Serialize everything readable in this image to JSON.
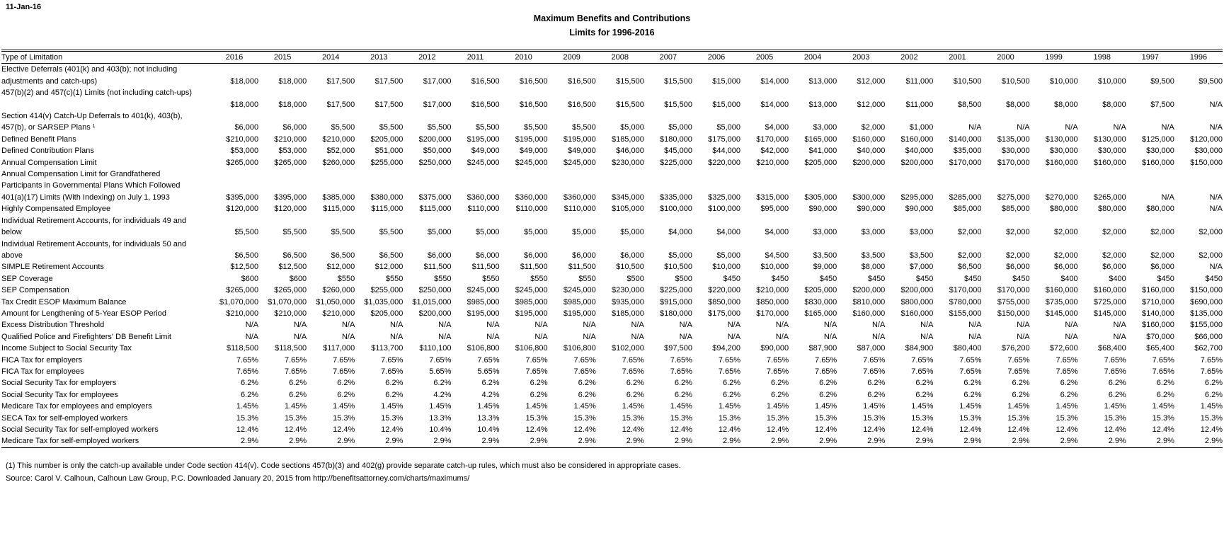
{
  "meta": {
    "date_label": "11-Jan-16"
  },
  "title": {
    "line1": "Maximum Benefits and Contributions",
    "line2": "Limits for 1996-2016"
  },
  "table": {
    "header": {
      "label": "Type of Limitation",
      "years": [
        "2016",
        "2015",
        "2014",
        "2013",
        "2012",
        "2011",
        "2010",
        "2009",
        "2008",
        "2007",
        "2006",
        "2005",
        "2004",
        "2003",
        "2002",
        "2001",
        "2000",
        "1999",
        "1998",
        "1997",
        "1996"
      ]
    },
    "rows": [
      {
        "label_lines": [
          "Elective Deferrals (401(k) and 403(b); not including",
          "adjustments and catch-ups)"
        ],
        "values": [
          "$18,000",
          "$18,000",
          "$17,500",
          "$17,500",
          "$17,000",
          "$16,500",
          "$16,500",
          "$16,500",
          "$15,500",
          "$15,500",
          "$15,000",
          "$14,000",
          "$13,000",
          "$12,000",
          "$11,000",
          "$10,500",
          "$10,500",
          "$10,000",
          "$10,000",
          "$9,500",
          "$9,500"
        ]
      },
      {
        "label_lines": [
          "457(b)(2) and 457(c)(1) Limits (not including catch-ups)",
          ""
        ],
        "values": [
          "$18,000",
          "$18,000",
          "$17,500",
          "$17,500",
          "$17,000",
          "$16,500",
          "$16,500",
          "$16,500",
          "$15,500",
          "$15,500",
          "$15,000",
          "$14,000",
          "$13,000",
          "$12,000",
          "$11,000",
          "$8,500",
          "$8,000",
          "$8,000",
          "$8,000",
          "$7,500",
          "N/A"
        ]
      },
      {
        "label_lines": [
          "Section 414(v) Catch-Up Deferrals to 401(k), 403(b),",
          "457(b), or SARSEP Plans ¹"
        ],
        "values": [
          "$6,000",
          "$6,000",
          "$5,500",
          "$5,500",
          "$5,500",
          "$5,500",
          "$5,500",
          "$5,500",
          "$5,000",
          "$5,000",
          "$5,000",
          "$4,000",
          "$3,000",
          "$2,000",
          "$1,000",
          "N/A",
          "N/A",
          "N/A",
          "N/A",
          "N/A",
          "N/A"
        ]
      },
      {
        "label_lines": [
          "Defined Benefit Plans"
        ],
        "values": [
          "$210,000",
          "$210,000",
          "$210,000",
          "$205,000",
          "$200,000",
          "$195,000",
          "$195,000",
          "$195,000",
          "$185,000",
          "$180,000",
          "$175,000",
          "$170,000",
          "$165,000",
          "$160,000",
          "$160,000",
          "$140,000",
          "$135,000",
          "$130,000",
          "$130,000",
          "$125,000",
          "$120,000"
        ]
      },
      {
        "label_lines": [
          "Defined Contribution Plans"
        ],
        "values": [
          "$53,000",
          "$53,000",
          "$52,000",
          "$51,000",
          "$50,000",
          "$49,000",
          "$49,000",
          "$49,000",
          "$46,000",
          "$45,000",
          "$44,000",
          "$42,000",
          "$41,000",
          "$40,000",
          "$40,000",
          "$35,000",
          "$30,000",
          "$30,000",
          "$30,000",
          "$30,000",
          "$30,000"
        ]
      },
      {
        "label_lines": [
          "Annual Compensation Limit"
        ],
        "values": [
          "$265,000",
          "$265,000",
          "$260,000",
          "$255,000",
          "$250,000",
          "$245,000",
          "$245,000",
          "$245,000",
          "$230,000",
          "$225,000",
          "$220,000",
          "$210,000",
          "$205,000",
          "$200,000",
          "$200,000",
          "$170,000",
          "$170,000",
          "$160,000",
          "$160,000",
          "$160,000",
          "$150,000"
        ]
      },
      {
        "label_lines": [
          "Annual Compensation Limit for Grandfathered",
          "Participants in Governmental Plans Which Followed",
          "401(a)(17) Limits (With Indexing) on July 1, 1993"
        ],
        "values": [
          "$395,000",
          "$395,000",
          "$385,000",
          "$380,000",
          "$375,000",
          "$360,000",
          "$360,000",
          "$360,000",
          "$345,000",
          "$335,000",
          "$325,000",
          "$315,000",
          "$305,000",
          "$300,000",
          "$295,000",
          "$285,000",
          "$275,000",
          "$270,000",
          "$265,000",
          "N/A",
          "N/A"
        ]
      },
      {
        "label_lines": [
          "Highly Compensated Employee"
        ],
        "values": [
          "$120,000",
          "$120,000",
          "$115,000",
          "$115,000",
          "$115,000",
          "$110,000",
          "$110,000",
          "$110,000",
          "$105,000",
          "$100,000",
          "$100,000",
          "$95,000",
          "$90,000",
          "$90,000",
          "$90,000",
          "$85,000",
          "$85,000",
          "$80,000",
          "$80,000",
          "$80,000",
          "N/A"
        ]
      },
      {
        "label_lines": [
          "Individual Retirement Accounts, for individuals 49 and",
          "below"
        ],
        "values": [
          "$5,500",
          "$5,500",
          "$5,500",
          "$5,500",
          "$5,000",
          "$5,000",
          "$5,000",
          "$5,000",
          "$5,000",
          "$4,000",
          "$4,000",
          "$4,000",
          "$3,000",
          "$3,000",
          "$3,000",
          "$2,000",
          "$2,000",
          "$2,000",
          "$2,000",
          "$2,000",
          "$2,000"
        ]
      },
      {
        "label_lines": [
          "Individual Retirement Accounts, for individuals 50 and",
          "above"
        ],
        "values": [
          "$6,500",
          "$6,500",
          "$6,500",
          "$6,500",
          "$6,000",
          "$6,000",
          "$6,000",
          "$6,000",
          "$6,000",
          "$5,000",
          "$5,000",
          "$4,500",
          "$3,500",
          "$3,500",
          "$3,500",
          "$2,000",
          "$2,000",
          "$2,000",
          "$2,000",
          "$2,000",
          "$2,000"
        ]
      },
      {
        "label_lines": [
          "SIMPLE Retirement Accounts"
        ],
        "values": [
          "$12,500",
          "$12,500",
          "$12,000",
          "$12,000",
          "$11,500",
          "$11,500",
          "$11,500",
          "$11,500",
          "$10,500",
          "$10,500",
          "$10,000",
          "$10,000",
          "$9,000",
          "$8,000",
          "$7,000",
          "$6,500",
          "$6,000",
          "$6,000",
          "$6,000",
          "$6,000",
          "N/A"
        ]
      },
      {
        "label_lines": [
          "SEP Coverage"
        ],
        "values": [
          "$600",
          "$600",
          "$550",
          "$550",
          "$550",
          "$550",
          "$550",
          "$550",
          "$500",
          "$500",
          "$450",
          "$450",
          "$450",
          "$450",
          "$450",
          "$450",
          "$450",
          "$400",
          "$400",
          "$450",
          "$450"
        ]
      },
      {
        "label_lines": [
          "SEP Compensation"
        ],
        "values": [
          "$265,000",
          "$265,000",
          "$260,000",
          "$255,000",
          "$250,000",
          "$245,000",
          "$245,000",
          "$245,000",
          "$230,000",
          "$225,000",
          "$220,000",
          "$210,000",
          "$205,000",
          "$200,000",
          "$200,000",
          "$170,000",
          "$170,000",
          "$160,000",
          "$160,000",
          "$160,000",
          "$150,000"
        ]
      },
      {
        "label_lines": [
          "Tax Credit ESOP Maximum Balance"
        ],
        "values": [
          "$1,070,000",
          "$1,070,000",
          "$1,050,000",
          "$1,035,000",
          "$1,015,000",
          "$985,000",
          "$985,000",
          "$985,000",
          "$935,000",
          "$915,000",
          "$850,000",
          "$850,000",
          "$830,000",
          "$810,000",
          "$800,000",
          "$780,000",
          "$755,000",
          "$735,000",
          "$725,000",
          "$710,000",
          "$690,000"
        ]
      },
      {
        "label_lines": [
          "Amount for Lengthening of 5-Year ESOP Period"
        ],
        "values": [
          "$210,000",
          "$210,000",
          "$210,000",
          "$205,000",
          "$200,000",
          "$195,000",
          "$195,000",
          "$195,000",
          "$185,000",
          "$180,000",
          "$175,000",
          "$170,000",
          "$165,000",
          "$160,000",
          "$160,000",
          "$155,000",
          "$150,000",
          "$145,000",
          "$145,000",
          "$140,000",
          "$135,000"
        ]
      },
      {
        "label_lines": [
          "Excess Distribution Threshold"
        ],
        "values": [
          "N/A",
          "N/A",
          "N/A",
          "N/A",
          "N/A",
          "N/A",
          "N/A",
          "N/A",
          "N/A",
          "N/A",
          "N/A",
          "N/A",
          "N/A",
          "N/A",
          "N/A",
          "N/A",
          "N/A",
          "N/A",
          "N/A",
          "$160,000",
          "$155,000"
        ]
      },
      {
        "label_lines": [
          "Qualified Police and Firefighters' DB Benefit Limit"
        ],
        "values": [
          "N/A",
          "N/A",
          "N/A",
          "N/A",
          "N/A",
          "N/A",
          "N/A",
          "N/A",
          "N/A",
          "N/A",
          "N/A",
          "N/A",
          "N/A",
          "N/A",
          "N/A",
          "N/A",
          "N/A",
          "N/A",
          "N/A",
          "$70,000",
          "$66,000"
        ]
      },
      {
        "label_lines": [
          "Income Subject to Social Security Tax"
        ],
        "values": [
          "$118,500",
          "$118,500",
          "$117,000",
          "$113,700",
          "$110,100",
          "$106,800",
          "$106,800",
          "$106,800",
          "$102,000",
          "$97,500",
          "$94,200",
          "$90,000",
          "$87,900",
          "$87,000",
          "$84,900",
          "$80,400",
          "$76,200",
          "$72,600",
          "$68,400",
          "$65,400",
          "$62,700"
        ]
      },
      {
        "label_lines": [
          "FICA Tax for employers"
        ],
        "values": [
          "7.65%",
          "7.65%",
          "7.65%",
          "7.65%",
          "7.65%",
          "7.65%",
          "7.65%",
          "7.65%",
          "7.65%",
          "7.65%",
          "7.65%",
          "7.65%",
          "7.65%",
          "7.65%",
          "7.65%",
          "7.65%",
          "7.65%",
          "7.65%",
          "7.65%",
          "7.65%",
          "7.65%"
        ]
      },
      {
        "label_lines": [
          "FICA Tax for employees"
        ],
        "values": [
          "7.65%",
          "7.65%",
          "7.65%",
          "7.65%",
          "5.65%",
          "5.65%",
          "7.65%",
          "7.65%",
          "7.65%",
          "7.65%",
          "7.65%",
          "7.65%",
          "7.65%",
          "7.65%",
          "7.65%",
          "7.65%",
          "7.65%",
          "7.65%",
          "7.65%",
          "7.65%",
          "7.65%"
        ]
      },
      {
        "label_lines": [
          "Social Security Tax for employers"
        ],
        "values": [
          "6.2%",
          "6.2%",
          "6.2%",
          "6.2%",
          "6.2%",
          "6.2%",
          "6.2%",
          "6.2%",
          "6.2%",
          "6.2%",
          "6.2%",
          "6.2%",
          "6.2%",
          "6.2%",
          "6.2%",
          "6.2%",
          "6.2%",
          "6.2%",
          "6.2%",
          "6.2%",
          "6.2%"
        ]
      },
      {
        "label_lines": [
          "Social Security Tax for employees"
        ],
        "values": [
          "6.2%",
          "6.2%",
          "6.2%",
          "6.2%",
          "4.2%",
          "4.2%",
          "6.2%",
          "6.2%",
          "6.2%",
          "6.2%",
          "6.2%",
          "6.2%",
          "6.2%",
          "6.2%",
          "6.2%",
          "6.2%",
          "6.2%",
          "6.2%",
          "6.2%",
          "6.2%",
          "6.2%"
        ]
      },
      {
        "label_lines": [
          "Medicare Tax for employees and employers"
        ],
        "values": [
          "1.45%",
          "1.45%",
          "1.45%",
          "1.45%",
          "1.45%",
          "1.45%",
          "1.45%",
          "1.45%",
          "1.45%",
          "1.45%",
          "1.45%",
          "1.45%",
          "1.45%",
          "1.45%",
          "1.45%",
          "1.45%",
          "1.45%",
          "1.45%",
          "1.45%",
          "1.45%",
          "1.45%"
        ]
      },
      {
        "label_lines": [
          "SECA Tax for self-employed workers"
        ],
        "values": [
          "15.3%",
          "15.3%",
          "15.3%",
          "15.3%",
          "13.3%",
          "13.3%",
          "15.3%",
          "15.3%",
          "15.3%",
          "15.3%",
          "15.3%",
          "15.3%",
          "15.3%",
          "15.3%",
          "15.3%",
          "15.3%",
          "15.3%",
          "15.3%",
          "15.3%",
          "15.3%",
          "15.3%"
        ]
      },
      {
        "label_lines": [
          "Social Security Tax for self-employed workers"
        ],
        "values": [
          "12.4%",
          "12.4%",
          "12.4%",
          "12.4%",
          "10.4%",
          "10.4%",
          "12.4%",
          "12.4%",
          "12.4%",
          "12.4%",
          "12.4%",
          "12.4%",
          "12.4%",
          "12.4%",
          "12.4%",
          "12.4%",
          "12.4%",
          "12.4%",
          "12.4%",
          "12.4%",
          "12.4%"
        ]
      },
      {
        "label_lines": [
          "Medicare Tax for self-employed workers"
        ],
        "values": [
          "2.9%",
          "2.9%",
          "2.9%",
          "2.9%",
          "2.9%",
          "2.9%",
          "2.9%",
          "2.9%",
          "2.9%",
          "2.9%",
          "2.9%",
          "2.9%",
          "2.9%",
          "2.9%",
          "2.9%",
          "2.9%",
          "2.9%",
          "2.9%",
          "2.9%",
          "2.9%",
          "2.9%"
        ]
      }
    ]
  },
  "footnotes": [
    "(1) This number is only the catch-up available under Code section 414(v). Code sections 457(b)(3) and 402(g) provide separate catch-up rules, which must also be considered in appropriate cases.",
    "Source: Carol V. Calhoun, Calhoun Law Group, P.C.  Downloaded January 20, 2015 from http://benefitsattorney.com/charts/maximums/"
  ]
}
